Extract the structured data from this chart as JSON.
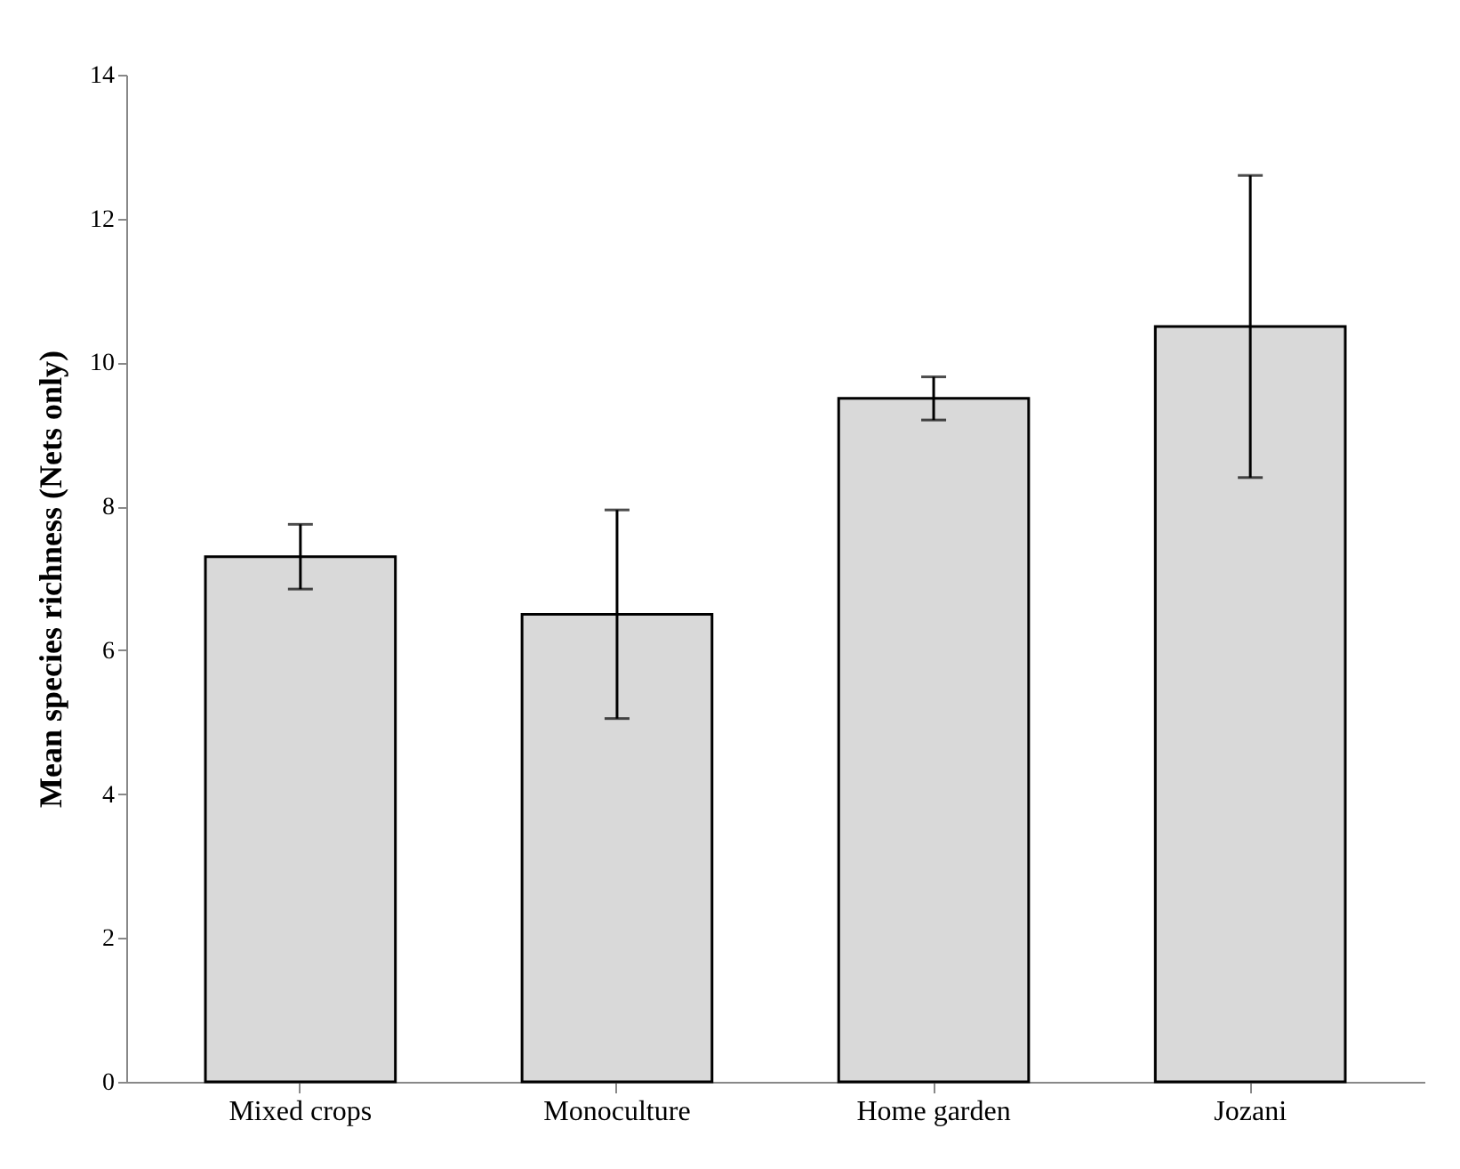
{
  "chart_data": {
    "type": "bar",
    "ylabel": "Mean species richness (Nets only)",
    "categories": [
      "Mixed crops",
      "Monoculture",
      "Home garden",
      "Jozani"
    ],
    "values": [
      7.3,
      6.5,
      9.5,
      10.5
    ],
    "errors": [
      0.45,
      1.45,
      0.3,
      2.1
    ],
    "color": "#d9d9d9",
    "ylim": [
      0,
      14
    ],
    "yticks": [
      0,
      2,
      4,
      6,
      8,
      10,
      12,
      14
    ],
    "grid": false
  }
}
